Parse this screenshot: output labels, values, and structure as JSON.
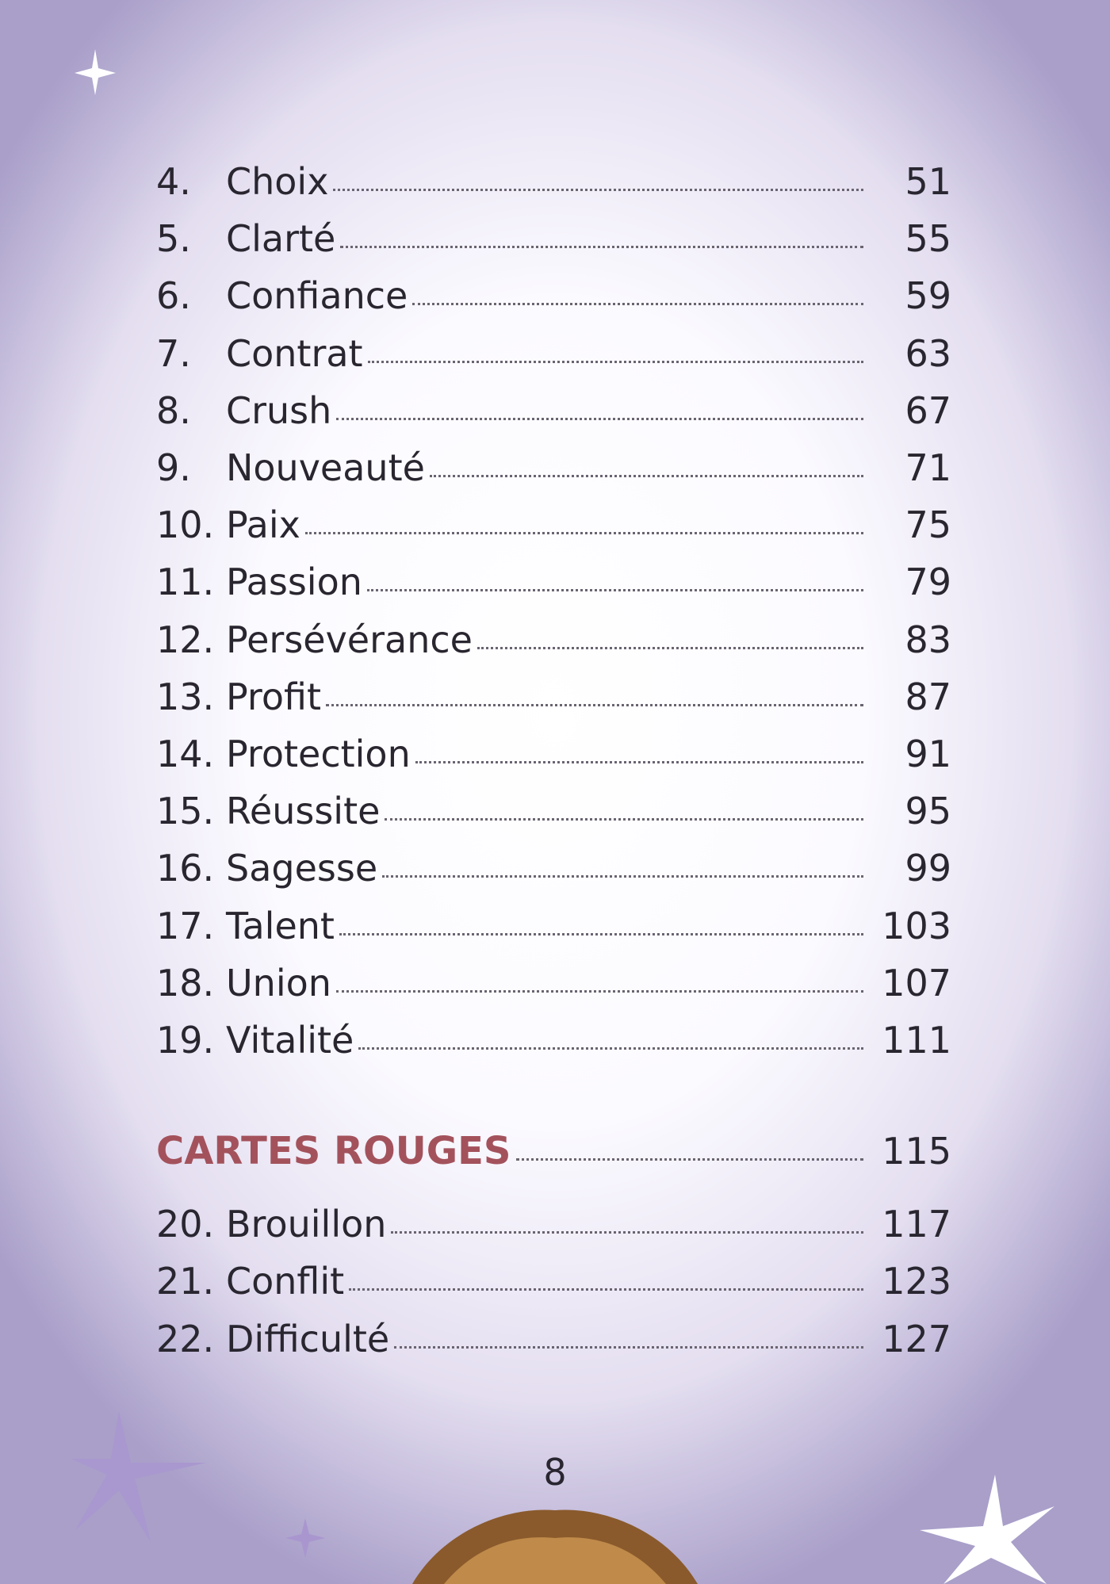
{
  "entries": [
    {
      "number": "4.",
      "title": "Choix",
      "page": "51"
    },
    {
      "number": "5.",
      "title": "Clarté",
      "page": "55"
    },
    {
      "number": "6.",
      "title": "Confiance",
      "page": "59"
    },
    {
      "number": "7.",
      "title": "Contrat",
      "page": "63"
    },
    {
      "number": "8.",
      "title": "Crush",
      "page": "67"
    },
    {
      "number": "9.",
      "title": "Nouveauté",
      "page": "71"
    },
    {
      "number": "10.",
      "title": "Paix",
      "page": "75"
    },
    {
      "number": "11.",
      "title": "Passion",
      "page": "79"
    },
    {
      "number": "12.",
      "title": "Persévérance",
      "page": "83"
    },
    {
      "number": "13.",
      "title": "Profit",
      "page": "87"
    },
    {
      "number": "14.",
      "title": "Protection",
      "page": "91"
    },
    {
      "number": "15.",
      "title": "Réussite",
      "page": "95"
    },
    {
      "number": "16.",
      "title": "Sagesse",
      "page": "99"
    },
    {
      "number": "17.",
      "title": "Talent",
      "page": "103"
    },
    {
      "number": "18.",
      "title": "Union",
      "page": "107"
    },
    {
      "number": "19.",
      "title": "Vitalité",
      "page": "111"
    }
  ],
  "section": {
    "title": "CARTES ROUGES",
    "page": "115"
  },
  "section_entries": [
    {
      "number": "20.",
      "title": "Brouillon",
      "page": "117"
    },
    {
      "number": "21.",
      "title": "Conflit",
      "page": "123"
    },
    {
      "number": "22.",
      "title": "Difficulté",
      "page": "127"
    }
  ],
  "page_number": "8"
}
